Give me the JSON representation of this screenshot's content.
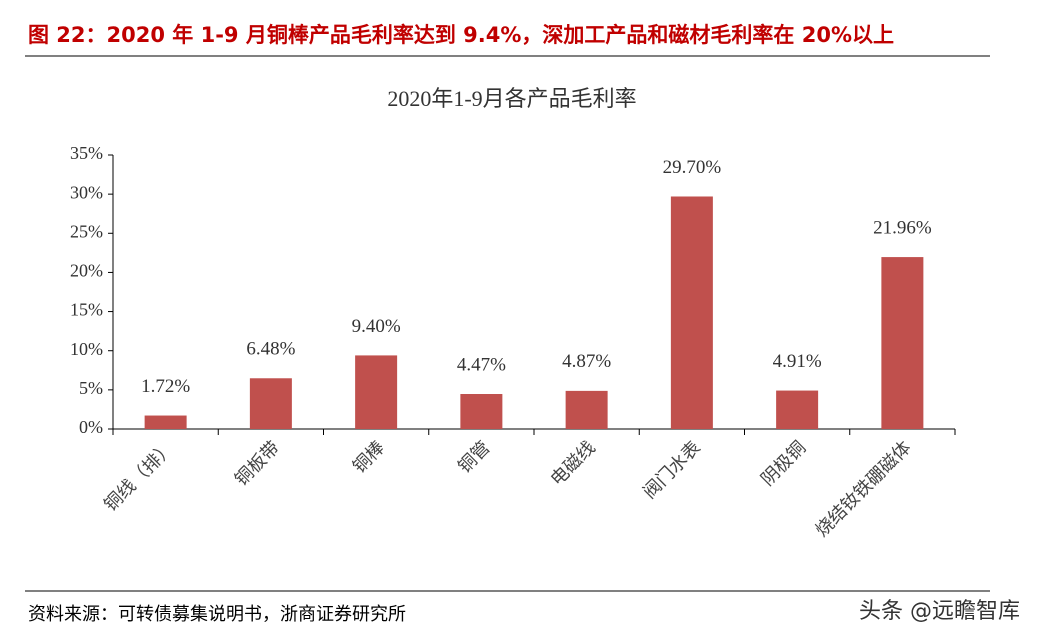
{
  "header": {
    "title": "图 22：2020 年 1-9 月铜棒产品毛利率达到 9.4%，深加工产品和磁材毛利率在 20%以上"
  },
  "chart_data": {
    "type": "bar",
    "title": "2020年1-9月各产品毛利率",
    "categories": [
      "铜线（排）",
      "铜板带",
      "铜棒",
      "铜管",
      "电磁线",
      "阀门水表",
      "阴极铜",
      "烧结钕铁硼磁体"
    ],
    "values": [
      1.72,
      6.48,
      9.4,
      4.47,
      4.87,
      29.7,
      4.91,
      21.96
    ],
    "value_labels": [
      "1.72%",
      "6.48%",
      "9.40%",
      "4.47%",
      "4.87%",
      "29.70%",
      "4.91%",
      "21.96%"
    ],
    "color": "#c0504d",
    "ylim": [
      0,
      35
    ],
    "yticks": [
      {
        "value": 0,
        "label": "0%"
      },
      {
        "value": 5,
        "label": "5%"
      },
      {
        "value": 10,
        "label": "10%"
      },
      {
        "value": 15,
        "label": "15%"
      },
      {
        "value": 20,
        "label": "20%"
      },
      {
        "value": 25,
        "label": "25%"
      },
      {
        "value": 30,
        "label": "30%"
      },
      {
        "value": 35,
        "label": "35%"
      }
    ],
    "grid": false
  },
  "footer": {
    "source": "资料来源：可转债募集说明书，浙商证券研究所"
  },
  "watermark": "头条 @远瞻智库"
}
